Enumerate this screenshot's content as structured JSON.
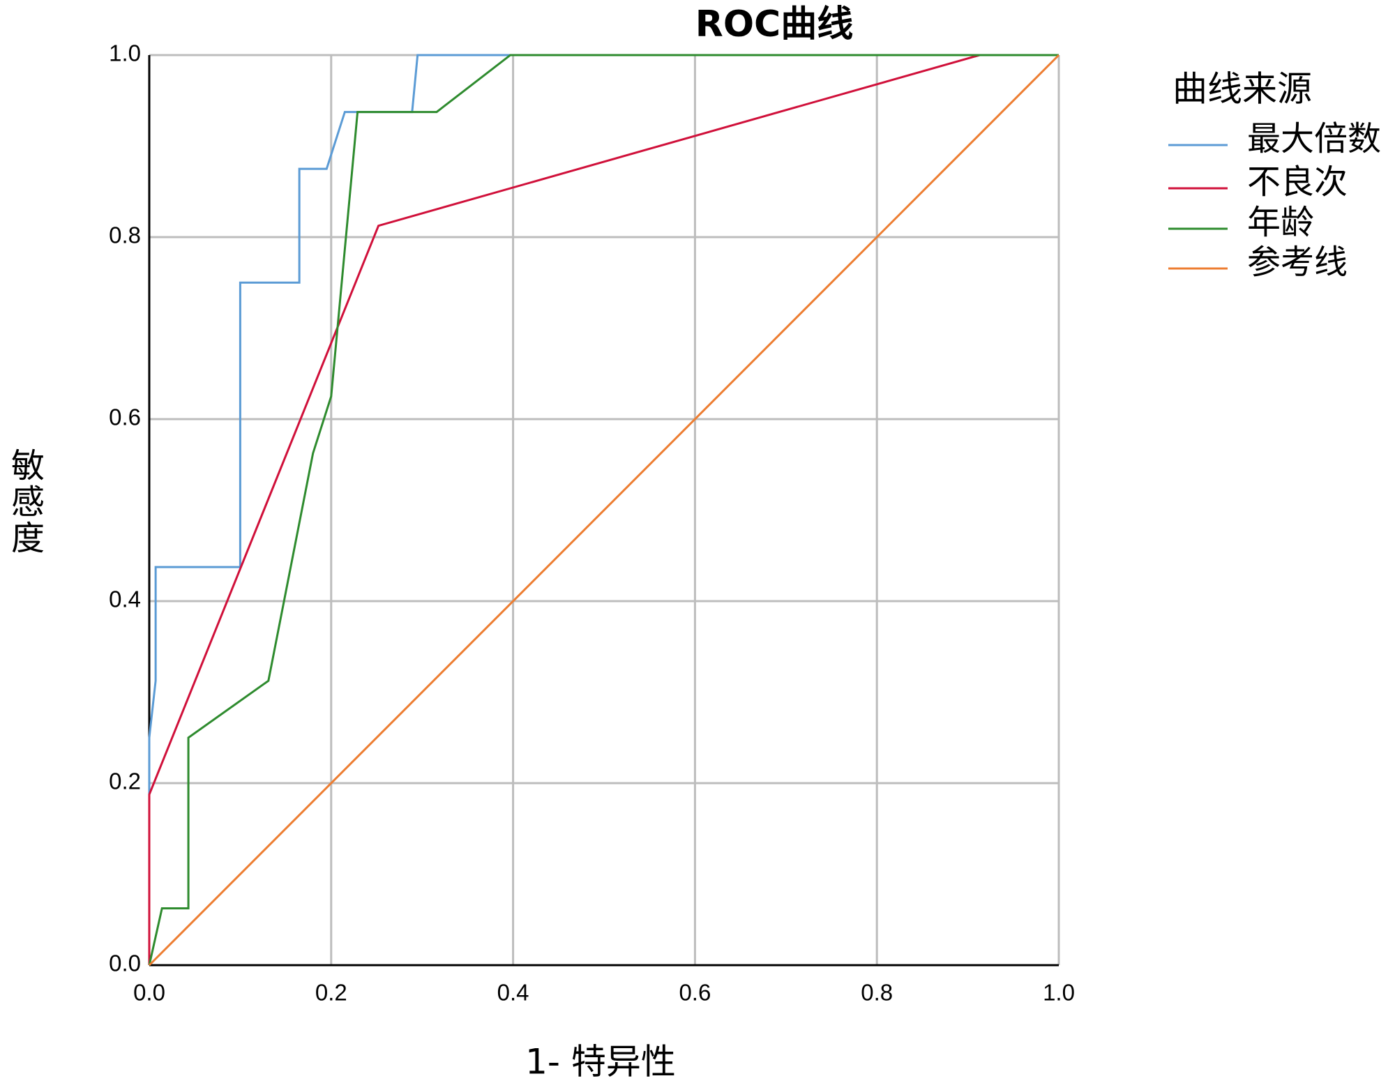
{
  "chart_data": {
    "type": "line",
    "title": "ROC曲线",
    "x_label": "1- 特异性",
    "y_label": "敏感度",
    "legend_title": "曲线来源",
    "legend": "right",
    "grid": true,
    "xlim": [
      0,
      1
    ],
    "ylim": [
      0,
      1
    ],
    "xticks": [
      {
        "value": 0,
        "label": "0.0"
      },
      {
        "value": 0.2,
        "label": "0.2"
      },
      {
        "value": 0.4,
        "label": "0.4"
      },
      {
        "value": 0.6,
        "label": "0.6"
      },
      {
        "value": 0.8,
        "label": "0.8"
      },
      {
        "value": 1,
        "label": "1.0"
      }
    ],
    "yticks": [
      {
        "value": 0,
        "label": "0.0"
      },
      {
        "value": 0.2,
        "label": "0.2"
      },
      {
        "value": 0.4,
        "label": "0.4"
      },
      {
        "value": 0.6,
        "label": "0.6"
      },
      {
        "value": 0.8,
        "label": "0.8"
      },
      {
        "value": 1,
        "label": "1.0"
      }
    ],
    "series": [
      {
        "name": "最大倍数",
        "color": "#5b9bd5",
        "x": [
          0,
          0,
          0.007,
          0.007,
          0.1,
          0.1,
          0.165,
          0.165,
          0.195,
          0.215,
          0.289,
          0.295,
          1
        ],
        "values": [
          0,
          0.25,
          0.3125,
          0.4375,
          0.4375,
          0.75,
          0.75,
          0.875,
          0.875,
          0.9375,
          0.9375,
          1,
          1
        ]
      },
      {
        "name": "不良次",
        "color": "#d0103a",
        "x": [
          0,
          0,
          0.252,
          0.913,
          1
        ],
        "values": [
          0,
          0.1875,
          0.8125,
          1,
          1
        ]
      },
      {
        "name": "年龄",
        "color": "#2e8b2e",
        "x": [
          0,
          0.014,
          0.043,
          0.043,
          0.131,
          0.18,
          0.2,
          0.229,
          0.316,
          0.397,
          1
        ],
        "values": [
          0,
          0.0625,
          0.0625,
          0.25,
          0.3125,
          0.5625,
          0.625,
          0.9375,
          0.9375,
          1,
          1
        ]
      },
      {
        "name": "参考线",
        "color": "#ed7d31",
        "x": [
          0,
          1
        ],
        "values": [
          0,
          1
        ]
      }
    ]
  }
}
